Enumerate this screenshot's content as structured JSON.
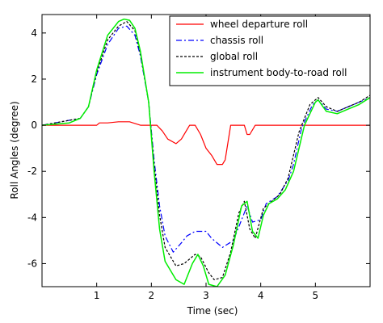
{
  "chart_data": {
    "type": "line",
    "xlabel": "Time (sec)",
    "ylabel": "Roll Angles (degree)",
    "xlim": [
      0,
      6
    ],
    "ylim": [
      -7,
      4.8
    ],
    "xticks": [
      1,
      2,
      3,
      4,
      5
    ],
    "yticks": [
      -6,
      -4,
      -2,
      0,
      2,
      4
    ],
    "grid": false,
    "legend_position": "top-right",
    "series": [
      {
        "name": "wheel departure roll",
        "color": "#ff0000",
        "style": "solid",
        "x": [
          0,
          0.7,
          0.8,
          1.0,
          1.05,
          1.2,
          1.4,
          1.6,
          1.8,
          2.0,
          2.1,
          2.2,
          2.3,
          2.45,
          2.55,
          2.7,
          2.75,
          2.8,
          2.9,
          3.0,
          3.1,
          3.2,
          3.3,
          3.35,
          3.45,
          3.5,
          3.55,
          3.7,
          3.75,
          3.8,
          3.9,
          4.0,
          6.0
        ],
        "y": [
          0,
          0,
          0,
          0,
          0.1,
          0.1,
          0.15,
          0.15,
          0,
          0,
          0,
          -0.25,
          -0.6,
          -0.8,
          -0.6,
          0,
          0,
          0,
          -0.4,
          -1.0,
          -1.3,
          -1.7,
          -1.7,
          -1.5,
          0,
          0,
          0,
          0,
          -0.4,
          -0.4,
          0,
          0,
          0
        ]
      },
      {
        "name": "chassis roll",
        "color": "#0000ff",
        "style": "dashdot",
        "x": [
          0,
          0.7,
          0.85,
          1.0,
          1.2,
          1.4,
          1.55,
          1.7,
          1.8,
          1.95,
          2.05,
          2.15,
          2.25,
          2.4,
          2.55,
          2.65,
          2.8,
          3.0,
          3.1,
          3.3,
          3.5,
          3.65,
          3.75,
          3.85,
          4.0,
          4.1,
          4.3,
          4.5,
          4.6,
          4.75,
          4.95,
          5.05,
          5.2,
          5.4,
          5.6,
          5.8,
          6.0
        ],
        "y": [
          0,
          0.3,
          0.8,
          2.2,
          3.5,
          4.2,
          4.3,
          3.9,
          3.0,
          1.0,
          -1.5,
          -3.5,
          -4.8,
          -5.5,
          -5.1,
          -4.8,
          -4.6,
          -4.6,
          -4.9,
          -5.3,
          -5.0,
          -4.1,
          -3.5,
          -4.2,
          -4.1,
          -3.4,
          -3.1,
          -2.4,
          -1.7,
          -0.1,
          0.9,
          1.1,
          0.7,
          0.6,
          0.8,
          1.0,
          1.2
        ]
      },
      {
        "name": "global roll",
        "color": "#000000",
        "style": "dotted",
        "x": [
          0,
          0.7,
          0.85,
          1.0,
          1.2,
          1.4,
          1.55,
          1.7,
          1.8,
          1.95,
          2.05,
          2.15,
          2.25,
          2.45,
          2.6,
          2.8,
          2.9,
          3.05,
          3.15,
          3.3,
          3.45,
          3.6,
          3.7,
          3.8,
          3.9,
          4.05,
          4.2,
          4.35,
          4.5,
          4.7,
          4.9,
          5.05,
          5.2,
          5.4,
          5.6,
          5.8,
          6.0
        ],
        "y": [
          0,
          0.3,
          0.8,
          2.3,
          3.7,
          4.3,
          4.5,
          4.1,
          3.1,
          1.0,
          -1.7,
          -3.9,
          -5.3,
          -6.1,
          -6.0,
          -5.6,
          -5.7,
          -6.4,
          -6.7,
          -6.6,
          -5.5,
          -3.8,
          -3.3,
          -4.5,
          -4.9,
          -3.6,
          -3.3,
          -3.0,
          -2.3,
          -0.3,
          0.9,
          1.2,
          0.8,
          0.6,
          0.8,
          1.0,
          1.3
        ]
      },
      {
        "name": "instrument body-to-road roll",
        "color": "#00ee00",
        "style": "solid",
        "x": [
          0,
          0.5,
          0.7,
          0.85,
          1.0,
          1.2,
          1.4,
          1.5,
          1.6,
          1.7,
          1.8,
          1.95,
          2.05,
          2.15,
          2.25,
          2.45,
          2.6,
          2.75,
          2.85,
          2.95,
          3.05,
          3.2,
          3.35,
          3.5,
          3.65,
          3.75,
          3.85,
          3.95,
          4.05,
          4.15,
          4.3,
          4.45,
          4.6,
          4.8,
          5.0,
          5.05,
          5.2,
          5.4,
          5.6,
          5.8,
          6.0
        ],
        "y": [
          0,
          0.1,
          0.3,
          0.8,
          2.4,
          3.9,
          4.5,
          4.6,
          4.55,
          4.2,
          3.2,
          1.0,
          -2.0,
          -4.5,
          -5.9,
          -6.7,
          -6.9,
          -6.0,
          -5.6,
          -6.1,
          -6.9,
          -7.0,
          -6.5,
          -5.2,
          -3.5,
          -3.3,
          -4.6,
          -4.9,
          -3.9,
          -3.4,
          -3.2,
          -2.8,
          -2.0,
          0.0,
          1.0,
          1.1,
          0.6,
          0.5,
          0.7,
          0.9,
          1.2
        ]
      }
    ]
  }
}
